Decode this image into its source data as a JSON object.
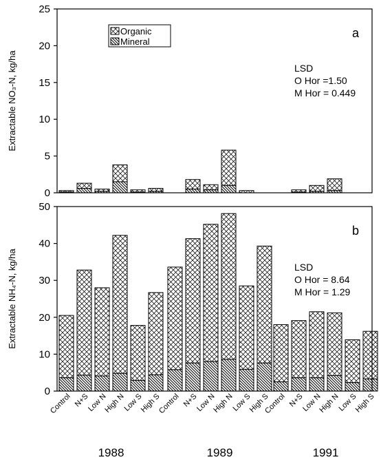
{
  "chart_data": [
    {
      "panel_label": "a",
      "type": "bar",
      "stacked": true,
      "ylabel": "Extractable NO₃-N, kg/ha",
      "ylim": [
        0,
        25
      ],
      "yticks": [
        "0",
        "5",
        "10",
        "15",
        "20",
        "25"
      ],
      "legend": {
        "placement": "top-left",
        "entries": [
          "Organic",
          "Mineral"
        ]
      },
      "lsd": [
        "LSD",
        "O Hor =1.50",
        "M Hor = 0.449"
      ],
      "groups": [
        {
          "year": "1988",
          "categories": [
            "Control",
            "N+S",
            "Low N",
            "High N",
            "Low S",
            "High S"
          ],
          "mineral": [
            0.1,
            0.6,
            0.2,
            1.5,
            0.1,
            0.2
          ],
          "total": [
            0.3,
            1.3,
            0.5,
            3.8,
            0.4,
            0.6
          ]
        },
        {
          "year": "1989",
          "categories": [
            "Control",
            "N+S",
            "Low N",
            "High N",
            "Low S",
            "High S"
          ],
          "mineral": [
            0.0,
            0.5,
            0.4,
            1.0,
            0.0,
            0.0
          ],
          "total": [
            0.0,
            1.8,
            1.1,
            5.8,
            0.3,
            0.0
          ]
        },
        {
          "year": "1991",
          "categories": [
            "Control",
            "N+S",
            "Low N",
            "High N",
            "Low S",
            "High S"
          ],
          "mineral": [
            0.0,
            0.1,
            0.2,
            0.3,
            0.0,
            0.0
          ],
          "total": [
            0.0,
            0.4,
            1.0,
            1.9,
            0.0,
            0.0
          ]
        }
      ]
    },
    {
      "panel_label": "b",
      "type": "bar",
      "stacked": true,
      "ylabel": "Extractable NH₄-N, kg/ha",
      "ylim": [
        0,
        50
      ],
      "yticks": [
        "0",
        "10",
        "20",
        "30",
        "40",
        "50"
      ],
      "lsd": [
        "LSD",
        "O Hor = 8.64",
        "M Hor = 1.29"
      ],
      "groups": [
        {
          "year": "1988",
          "categories": [
            "Control",
            "N+S",
            "Low N",
            "High N",
            "Low S",
            "High S"
          ],
          "mineral": [
            3.6,
            4.3,
            4.1,
            4.8,
            2.9,
            4.4
          ],
          "total": [
            20.5,
            32.8,
            28.0,
            42.2,
            17.8,
            26.7
          ]
        },
        {
          "year": "1989",
          "categories": [
            "Control",
            "N+S",
            "Low N",
            "High N",
            "Low S",
            "High S"
          ],
          "mineral": [
            5.8,
            7.6,
            8.0,
            8.6,
            5.9,
            7.6
          ],
          "total": [
            33.6,
            41.3,
            45.2,
            48.1,
            28.5,
            39.3
          ]
        },
        {
          "year": "1991",
          "categories": [
            "Control",
            "N+S",
            "Low N",
            "High N",
            "Low S",
            "High S"
          ],
          "mineral": [
            2.5,
            3.6,
            3.6,
            4.2,
            2.3,
            3.3
          ],
          "total": [
            18.0,
            19.1,
            21.5,
            21.2,
            13.9,
            16.2
          ]
        }
      ]
    }
  ]
}
